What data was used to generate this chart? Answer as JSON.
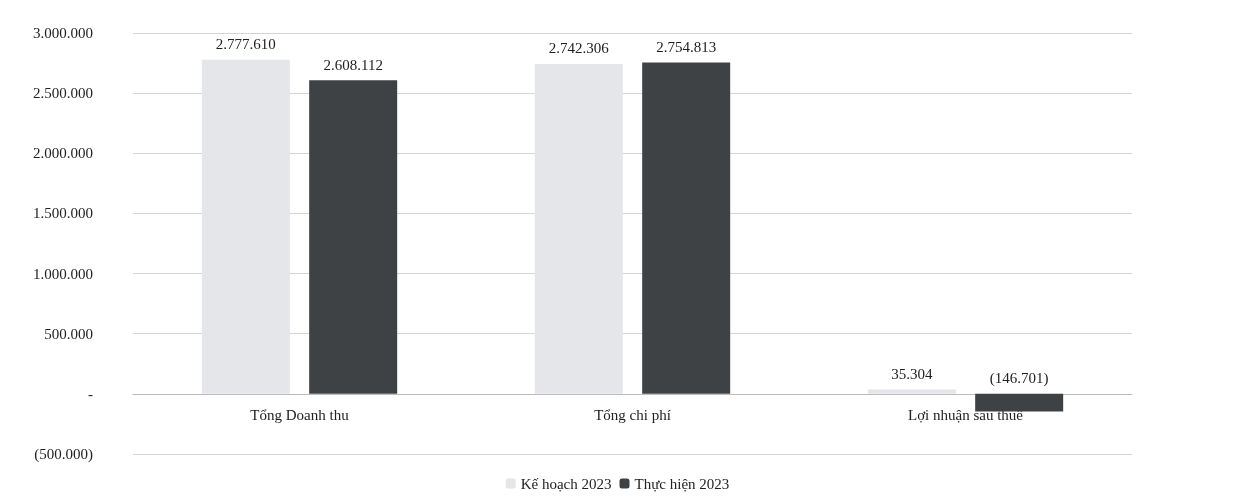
{
  "chart_data": {
    "type": "bar",
    "categories": [
      "Tổng Doanh thu",
      "Tổng chi phí",
      "Lợi nhuận sau thuế"
    ],
    "series": [
      {
        "name": "Kế hoạch 2023",
        "color": "#e4e6ea",
        "values": [
          2777610,
          2742306,
          35304
        ],
        "value_labels": [
          "2.777.610",
          "2.742.306",
          "35.304"
        ]
      },
      {
        "name": "Thực hiện 2023",
        "color": "#3e4244",
        "values": [
          2608112,
          2754813,
          -146701
        ],
        "value_labels": [
          "2.608.112",
          "2.754.813",
          "(146.701)"
        ]
      }
    ],
    "ylim": [
      -500000,
      3000000
    ],
    "yticks": [
      {
        "value": -500000,
        "label": "(500.000)"
      },
      {
        "value": 0,
        "label": "-"
      },
      {
        "value": 500000,
        "label": "500.000"
      },
      {
        "value": 1000000,
        "label": "1.000.000"
      },
      {
        "value": 1500000,
        "label": "1.500.000"
      },
      {
        "value": 2000000,
        "label": "2.000.000"
      },
      {
        "value": 2500000,
        "label": "2.500.000"
      },
      {
        "value": 3000000,
        "label": "3.000.000"
      }
    ],
    "grid": "y",
    "legend": "bottom"
  }
}
